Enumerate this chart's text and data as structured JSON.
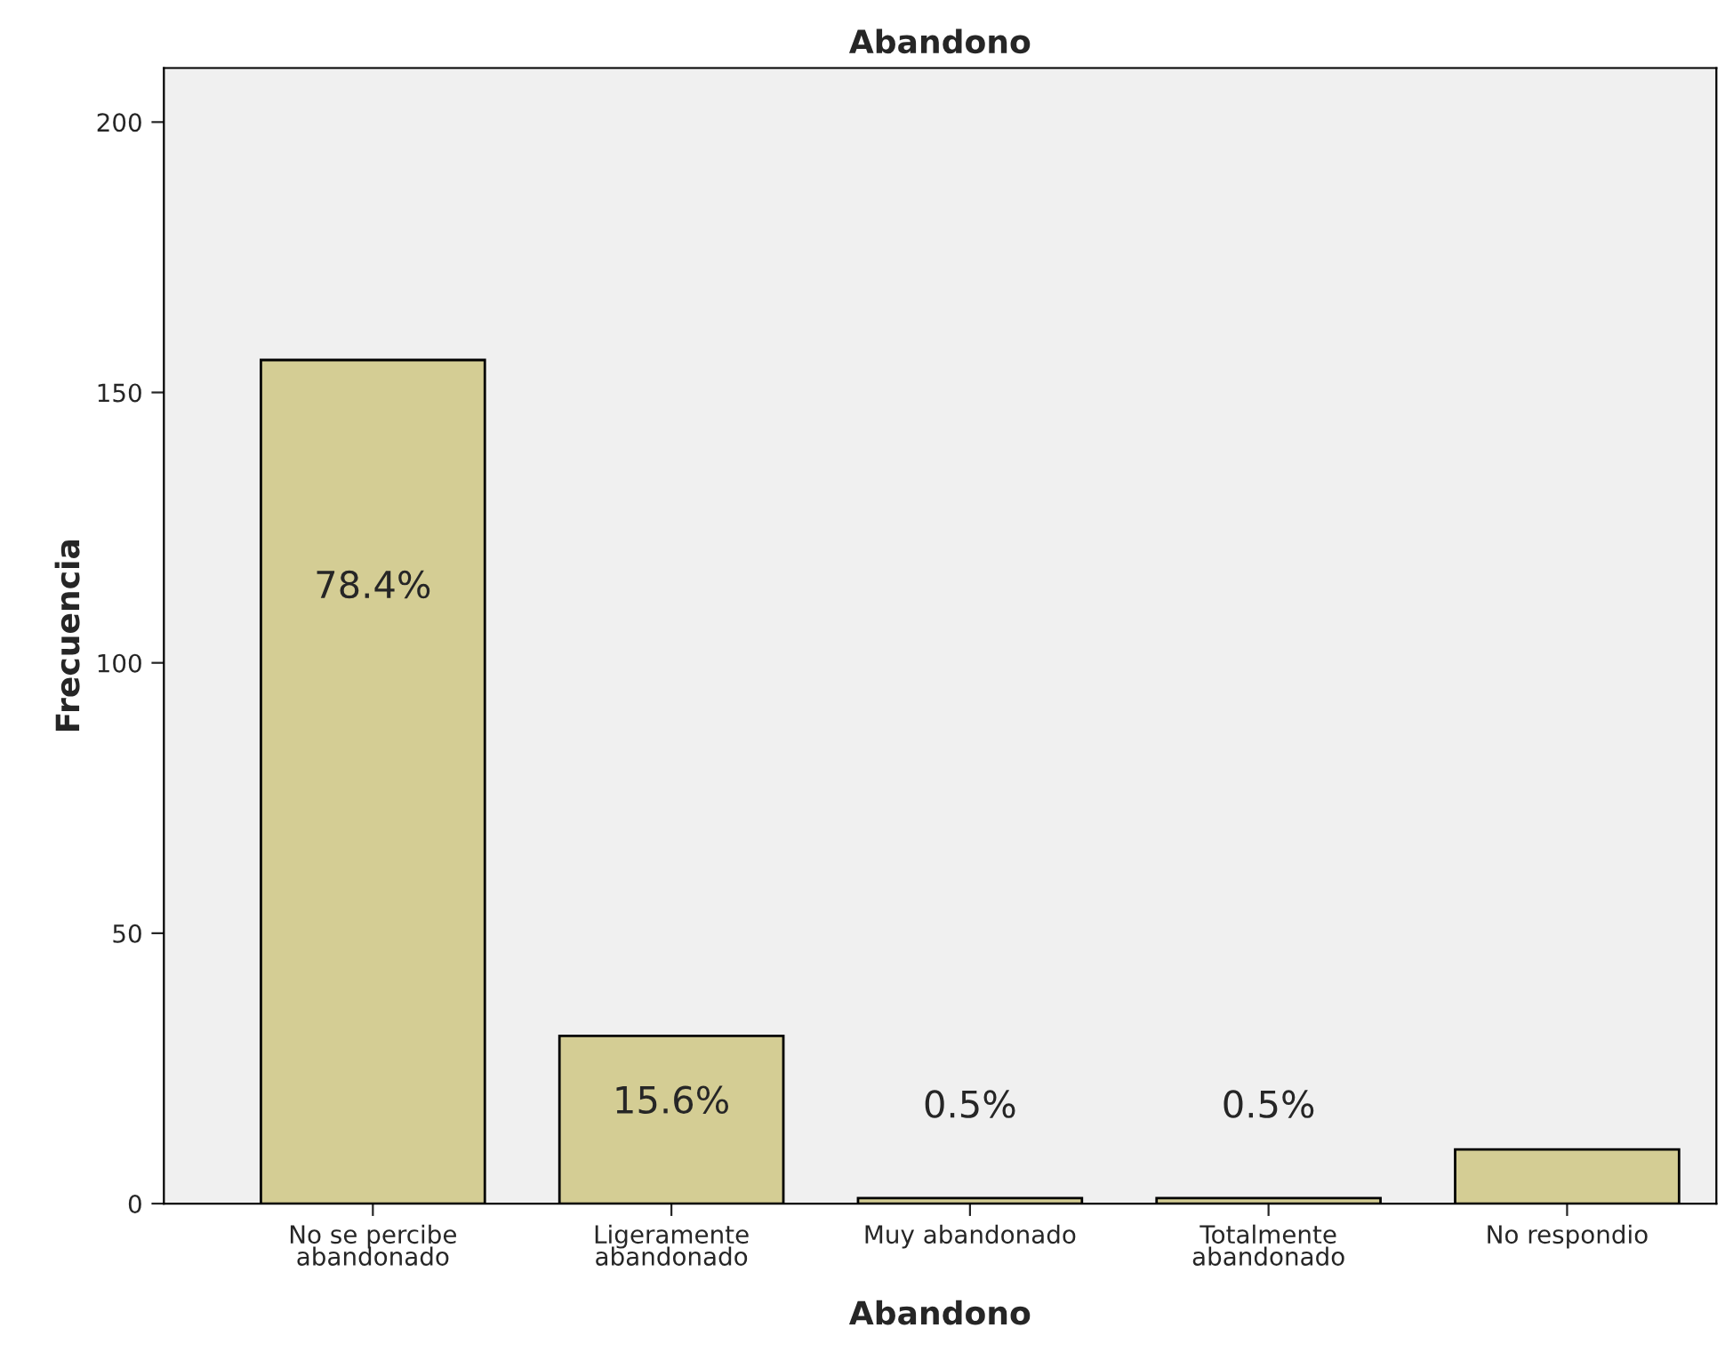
{
  "chart_data": {
    "type": "bar",
    "title": "Abandono",
    "xlabel": "Abandono",
    "ylabel": "Frecuencia",
    "categories": [
      "No se percibe\nabandonado",
      "Ligeramente\nabandonado",
      "Muy abandonado",
      "Totalmente\nabandonado",
      "No respondio"
    ],
    "values": [
      156,
      31,
      1,
      1,
      10
    ],
    "color": "#d4cd94",
    "annotations": [
      "78.4%",
      "15.6%",
      "0.5%",
      "0.5%"
    ],
    "ylim": [
      0,
      210
    ],
    "yticks": [
      0,
      50,
      100,
      150,
      200
    ],
    "grid": false,
    "legend": false
  }
}
